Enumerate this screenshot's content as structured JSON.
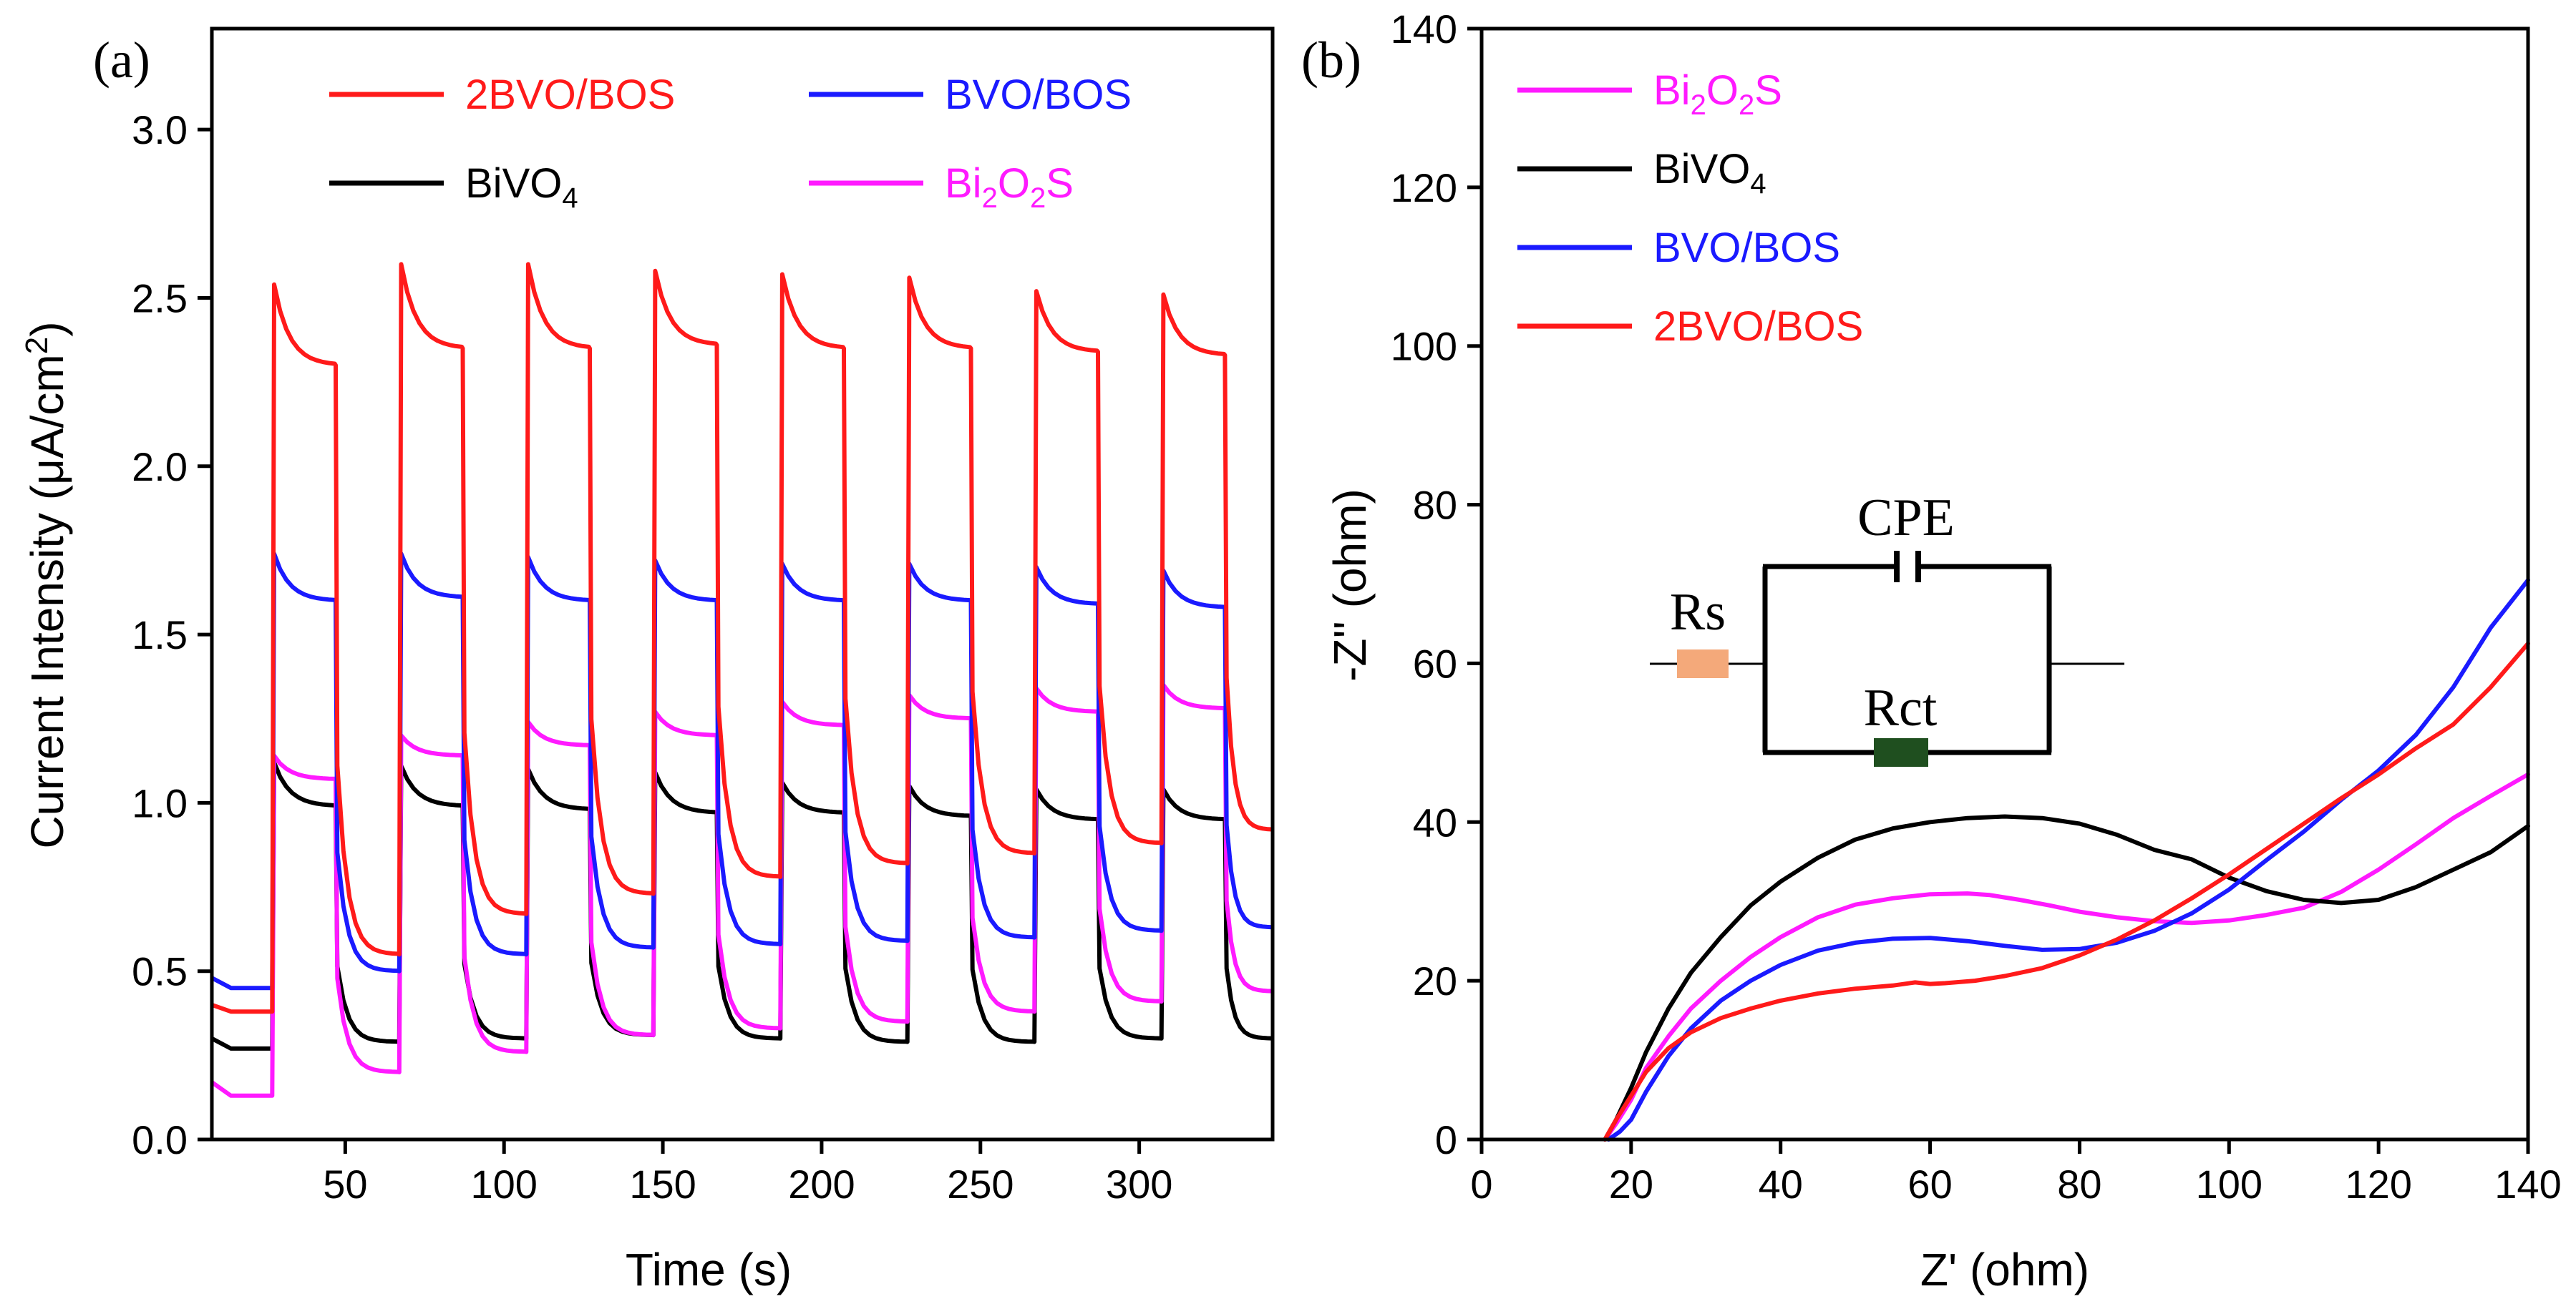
{
  "chart_data": [
    {
      "panel": "(a)",
      "type": "line",
      "title": "",
      "xlabel": "Time (s)",
      "ylabel_parts": [
        "Current Intensity (",
        "μ",
        "A/cm",
        "2",
        ")"
      ],
      "xlim": [
        8,
        342
      ],
      "ylim": [
        0,
        3.3
      ],
      "xticks": [
        50,
        100,
        150,
        200,
        250,
        300
      ],
      "xtick_labels": [
        "50",
        "100",
        "150",
        "200",
        "250",
        "300"
      ],
      "yticks": [
        0,
        0.5,
        1.0,
        1.5,
        2.0,
        2.5,
        3.0
      ],
      "ytick_labels": [
        "0.0",
        "0.5",
        "1.0",
        "1.5",
        "2.0",
        "2.5",
        "3.0"
      ],
      "grid": false,
      "legend_position": "top",
      "on_times": [
        27,
        67,
        107,
        147,
        187,
        227,
        267,
        307
      ],
      "on_duration": 20,
      "series": [
        {
          "name": "2BVO/BOS",
          "label_parts": [
            {
              "t": "2BVO/BOS"
            }
          ],
          "color": "#ff1a1a",
          "peak": [
            2.54,
            2.6,
            2.6,
            2.58,
            2.57,
            2.56,
            2.52,
            2.51
          ],
          "plateau_end": [
            2.3,
            2.35,
            2.35,
            2.36,
            2.35,
            2.35,
            2.34,
            2.33
          ],
          "dark_start": 0.4,
          "dark_first_drop": 0.38,
          "dark_end": [
            0.55,
            0.67,
            0.73,
            0.78,
            0.82,
            0.85,
            0.88,
            0.92
          ]
        },
        {
          "name": "BVO/BOS",
          "label_parts": [
            {
              "t": "BVO/BOS"
            }
          ],
          "color": "#1a1aff",
          "peak": [
            1.74,
            1.74,
            1.73,
            1.72,
            1.71,
            1.71,
            1.7,
            1.69
          ],
          "plateau_end": [
            1.6,
            1.61,
            1.6,
            1.6,
            1.6,
            1.6,
            1.59,
            1.58
          ],
          "dark_start": 0.48,
          "dark_first_drop": 0.45,
          "dark_end": [
            0.5,
            0.55,
            0.57,
            0.58,
            0.59,
            0.6,
            0.62,
            0.63
          ]
        },
        {
          "name": "BiVO4",
          "label_parts": [
            {
              "t": "BiVO"
            },
            {
              "t": "4",
              "sub": true
            }
          ],
          "color": "#000000",
          "peak": [
            1.12,
            1.11,
            1.1,
            1.09,
            1.06,
            1.05,
            1.04,
            1.04
          ],
          "plateau_end": [
            0.99,
            0.99,
            0.98,
            0.97,
            0.97,
            0.96,
            0.95,
            0.95
          ],
          "dark_start": 0.3,
          "dark_first_drop": 0.27,
          "dark_end": [
            0.29,
            0.3,
            0.31,
            0.3,
            0.29,
            0.29,
            0.3,
            0.3
          ]
        },
        {
          "name": "Bi2O2S",
          "label_parts": [
            {
              "t": "Bi"
            },
            {
              "t": "2",
              "sub": true
            },
            {
              "t": "O"
            },
            {
              "t": "2",
              "sub": true
            },
            {
              "t": "S"
            }
          ],
          "color": "#ff1aff",
          "peak": [
            1.14,
            1.2,
            1.24,
            1.27,
            1.3,
            1.32,
            1.34,
            1.35
          ],
          "plateau_end": [
            1.07,
            1.14,
            1.17,
            1.2,
            1.23,
            1.25,
            1.27,
            1.28
          ],
          "dark_start": 0.17,
          "dark_first_drop": 0.13,
          "dark_end": [
            0.2,
            0.26,
            0.31,
            0.33,
            0.35,
            0.38,
            0.41,
            0.44
          ]
        }
      ]
    },
    {
      "panel": "(b)",
      "type": "line",
      "title": "",
      "xlabel": "Z' (ohm)",
      "ylabel": "-Z'' (ohm)",
      "xlim": [
        0,
        140
      ],
      "ylim": [
        0,
        140
      ],
      "xticks": [
        0,
        20,
        40,
        60,
        80,
        100,
        120,
        140
      ],
      "xtick_labels": [
        "0",
        "20",
        "40",
        "60",
        "80",
        "100",
        "120",
        "140"
      ],
      "yticks": [
        0,
        20,
        40,
        60,
        80,
        100,
        120,
        140
      ],
      "ytick_labels": [
        "0",
        "20",
        "40",
        "60",
        "80",
        "100",
        "120",
        "140"
      ],
      "grid": false,
      "legend_position": "top-left",
      "series": [
        {
          "name": "Bi2O2S",
          "label_parts": [
            {
              "t": "Bi"
            },
            {
              "t": "2",
              "sub": true
            },
            {
              "t": "O"
            },
            {
              "t": "2",
              "sub": true
            },
            {
              "t": "S"
            }
          ],
          "color": "#ff1aff",
          "points": [
            [
              16.5,
              0
            ],
            [
              18,
              2
            ],
            [
              20,
              5
            ],
            [
              22,
              9
            ],
            [
              25,
              13
            ],
            [
              28,
              16.5
            ],
            [
              32,
              20
            ],
            [
              36,
              23
            ],
            [
              40,
              25.5
            ],
            [
              45,
              28
            ],
            [
              50,
              29.6
            ],
            [
              55,
              30.4
            ],
            [
              60,
              30.9
            ],
            [
              65,
              31
            ],
            [
              68,
              30.8
            ],
            [
              72,
              30.2
            ],
            [
              76,
              29.5
            ],
            [
              80,
              28.7
            ],
            [
              85,
              28
            ],
            [
              90,
              27.5
            ],
            [
              95,
              27.3
            ],
            [
              100,
              27.6
            ],
            [
              105,
              28.3
            ],
            [
              110,
              29.2
            ],
            [
              115,
              31.2
            ],
            [
              120,
              34
            ],
            [
              125,
              37.2
            ],
            [
              130,
              40.5
            ],
            [
              135,
              43.3
            ],
            [
              140,
              46
            ]
          ]
        },
        {
          "name": "BiVO4",
          "label_parts": [
            {
              "t": "BiVO"
            },
            {
              "t": "4",
              "sub": true
            }
          ],
          "color": "#000000",
          "points": [
            [
              16.5,
              0
            ],
            [
              18,
              2.5
            ],
            [
              20,
              6.5
            ],
            [
              22,
              11
            ],
            [
              25,
              16.5
            ],
            [
              28,
              21
            ],
            [
              32,
              25.5
            ],
            [
              36,
              29.5
            ],
            [
              40,
              32.5
            ],
            [
              45,
              35.5
            ],
            [
              50,
              37.8
            ],
            [
              55,
              39.2
            ],
            [
              60,
              40
            ],
            [
              65,
              40.5
            ],
            [
              70,
              40.7
            ],
            [
              75,
              40.5
            ],
            [
              80,
              39.8
            ],
            [
              85,
              38.4
            ],
            [
              90,
              36.5
            ],
            [
              95,
              35.3
            ],
            [
              100,
              33
            ],
            [
              105,
              31.3
            ],
            [
              110,
              30.2
            ],
            [
              115,
              29.8
            ],
            [
              120,
              30.2
            ],
            [
              125,
              31.8
            ],
            [
              130,
              34
            ],
            [
              135,
              36.2
            ],
            [
              140,
              39.5
            ]
          ]
        },
        {
          "name": "BVO/BOS",
          "label_parts": [
            {
              "t": "BVO/BOS"
            }
          ],
          "color": "#1a1aff",
          "points": [
            [
              17,
              0
            ],
            [
              18.5,
              1
            ],
            [
              20,
              2.5
            ],
            [
              22,
              6
            ],
            [
              25,
              10.5
            ],
            [
              28,
              14
            ],
            [
              32,
              17.5
            ],
            [
              36,
              20
            ],
            [
              40,
              22
            ],
            [
              45,
              23.8
            ],
            [
              50,
              24.8
            ],
            [
              55,
              25.3
            ],
            [
              60,
              25.4
            ],
            [
              65,
              25
            ],
            [
              70,
              24.4
            ],
            [
              75,
              23.9
            ],
            [
              80,
              24
            ],
            [
              85,
              24.8
            ],
            [
              90,
              26.3
            ],
            [
              95,
              28.5
            ],
            [
              100,
              31.5
            ],
            [
              105,
              35.2
            ],
            [
              110,
              38.8
            ],
            [
              115,
              42.8
            ],
            [
              120,
              46.5
            ],
            [
              125,
              51
            ],
            [
              130,
              57
            ],
            [
              135,
              64.5
            ],
            [
              140,
              70.5
            ]
          ]
        },
        {
          "name": "2BVO/BOS",
          "label_parts": [
            {
              "t": "2BVO/BOS"
            }
          ],
          "color": "#ff1a1a",
          "points": [
            [
              16.5,
              0
            ],
            [
              18,
              2.5
            ],
            [
              20,
              5.5
            ],
            [
              22,
              8.5
            ],
            [
              25,
              11.5
            ],
            [
              28,
              13.5
            ],
            [
              32,
              15.3
            ],
            [
              36,
              16.5
            ],
            [
              40,
              17.5
            ],
            [
              45,
              18.4
            ],
            [
              50,
              19
            ],
            [
              55,
              19.4
            ],
            [
              58,
              19.8
            ],
            [
              60,
              19.6
            ],
            [
              62,
              19.7
            ],
            [
              66,
              20
            ],
            [
              70,
              20.6
            ],
            [
              75,
              21.6
            ],
            [
              80,
              23.2
            ],
            [
              85,
              25.2
            ],
            [
              90,
              27.6
            ],
            [
              95,
              30.4
            ],
            [
              100,
              33.4
            ],
            [
              105,
              36.6
            ],
            [
              110,
              39.8
            ],
            [
              115,
              43
            ],
            [
              120,
              46
            ],
            [
              125,
              49.3
            ],
            [
              130,
              52.3
            ],
            [
              135,
              57
            ],
            [
              140,
              62.5
            ]
          ]
        }
      ],
      "inset_circuit": {
        "labels": {
          "cpe": "CPE",
          "rs": "Rs",
          "rct": "Rct"
        },
        "rs_color": "#f4a97a",
        "rct_color": "#1f4f1f"
      }
    }
  ]
}
